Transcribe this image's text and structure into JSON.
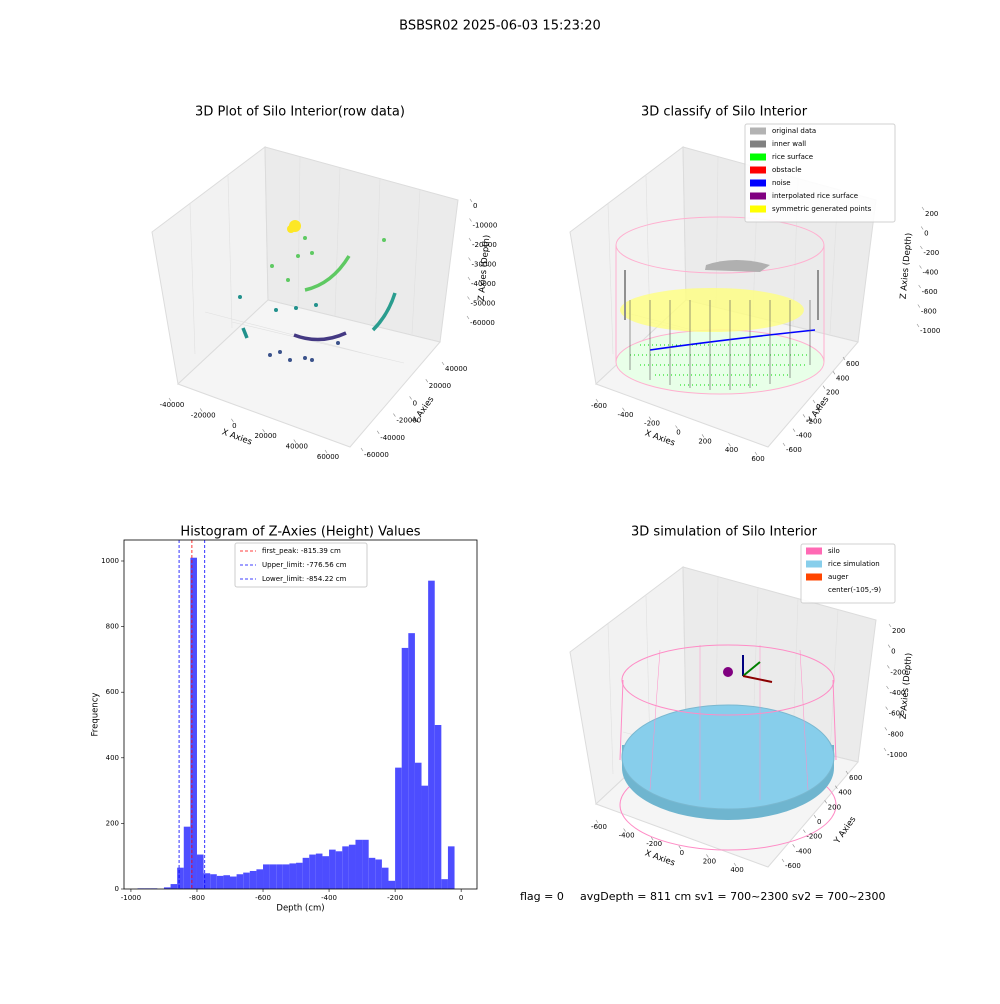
{
  "title": "BSBSR02 2025-06-03 15:23:20",
  "chart_data": [
    {
      "type": "scatter3d",
      "title": "3D Plot of Silo Interior(row data)",
      "xlabel": "X Axies",
      "ylabel": "Y Axies",
      "zlabel": "Z Axies (Depth)",
      "xticks": [
        -40000,
        -20000,
        0,
        20000,
        40000,
        60000
      ],
      "yticks": [
        -60000,
        -40000,
        -20000,
        0,
        20000,
        40000
      ],
      "zticks": [
        0,
        -10000,
        -20000,
        -30000,
        -40000,
        -50000,
        -60000
      ]
    },
    {
      "type": "scatter3d",
      "title": "3D classify of Silo Interior",
      "xlabel": "X Axies",
      "ylabel": "Y Axies",
      "zlabel": "Z Axies (Depth)",
      "xticks": [
        -600,
        -400,
        -200,
        0,
        200,
        400,
        600
      ],
      "yticks": [
        -600,
        -400,
        -200,
        0,
        200,
        400,
        600
      ],
      "zticks": [
        200,
        0,
        -200,
        -400,
        -600,
        -800,
        -1000
      ],
      "series": [
        {
          "name": "original data",
          "color": "#b3b3b3"
        },
        {
          "name": "inner wall",
          "color": "#808080"
        },
        {
          "name": "rice surface",
          "color": "#00ff00"
        },
        {
          "name": "obstacle",
          "color": "#ff0000"
        },
        {
          "name": "noise",
          "color": "#0000ff"
        },
        {
          "name": "interpolated rice surface",
          "color": "#800080"
        },
        {
          "name": "symmetric generated points",
          "color": "#ffff00"
        }
      ]
    },
    {
      "type": "histogram",
      "title": "Histogram of Z-Axies (Height) Values",
      "xlabel": "Depth (cm)",
      "ylabel": "Frequency",
      "color": "#4d4dff",
      "bins": [
        -1000,
        -980,
        -960,
        -940,
        -920,
        -900,
        -880,
        -860,
        -840,
        -820,
        -800,
        -780,
        -760,
        -740,
        -720,
        -700,
        -680,
        -660,
        -640,
        -620,
        -600,
        -580,
        -560,
        -540,
        -520,
        -500,
        -480,
        -460,
        -440,
        -420,
        -400,
        -380,
        -360,
        -340,
        -320,
        -300,
        -280,
        -260,
        -240,
        -220,
        -200,
        -180,
        -160,
        -140,
        -120,
        -100,
        -80,
        -60,
        -40,
        -20,
        0
      ],
      "values": [
        0,
        2,
        2,
        2,
        0,
        5,
        15,
        65,
        190,
        1010,
        105,
        48,
        45,
        40,
        42,
        38,
        45,
        50,
        55,
        60,
        75,
        75,
        75,
        75,
        78,
        80,
        95,
        105,
        108,
        100,
        120,
        115,
        130,
        135,
        150,
        150,
        95,
        90,
        65,
        25,
        370,
        735,
        780,
        385,
        315,
        940,
        500,
        30,
        130,
        0
      ],
      "xlim": [
        -1021,
        48
      ],
      "ylim": [
        0,
        1064
      ],
      "xticks": [
        -1000,
        -800,
        -600,
        -400,
        -200,
        0
      ],
      "yticks": [
        0,
        200,
        400,
        600,
        800,
        1000
      ],
      "vlines": [
        {
          "label": "first_peak: -815.39 cm",
          "value": -815.39,
          "color": "#ff0000"
        },
        {
          "label": "Upper_limit: -776.56 cm",
          "value": -776.56,
          "color": "#0000ff"
        },
        {
          "label": "Lower_limit: -854.22 cm",
          "value": -854.22,
          "color": "#0000ff"
        }
      ]
    },
    {
      "type": "surface3d",
      "title": "3D simulation of Silo Interior",
      "xlabel": "X Axies",
      "ylabel": "Y Axies",
      "zlabel": "Z Axies (Depth)",
      "xticks": [
        -600,
        -400,
        -200,
        0,
        200,
        400
      ],
      "yticks": [
        -600,
        -400,
        -200,
        0,
        200,
        400,
        600
      ],
      "zticks": [
        200,
        0,
        -200,
        -400,
        -600,
        -800,
        -1000
      ],
      "series": [
        {
          "name": "silo",
          "color": "#ff69b4"
        },
        {
          "name": "rice simulation",
          "color": "#87ceeb"
        },
        {
          "name": "auger",
          "color": "#ff4500"
        },
        {
          "name": "center(-105,-9)",
          "color": "#ffffff"
        }
      ]
    }
  ],
  "status": [
    "flag = 0",
    "avgDepth = 811 cm  sv1 = 700~2300  sv2 = 700~2300"
  ]
}
